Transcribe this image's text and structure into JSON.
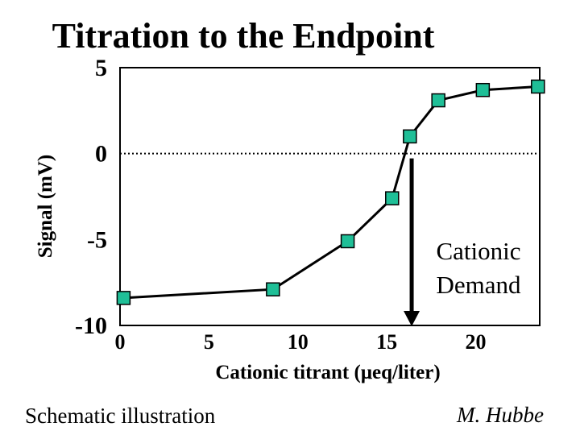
{
  "chart_data": {
    "type": "line",
    "title": "Titration to the Endpoint",
    "xlabel": "Cationic titrant  (μeq/liter)",
    "ylabel": "Signal  (mV)",
    "xlim": [
      0,
      23.6
    ],
    "ylim": [
      -10,
      5
    ],
    "xticks": [
      {
        "value": 0,
        "label": "0"
      },
      {
        "value": 5,
        "label": "5"
      },
      {
        "value": 10,
        "label": "10"
      },
      {
        "value": 15,
        "label": "15"
      },
      {
        "value": 20,
        "label": "20"
      }
    ],
    "yticks": [
      {
        "value": 5,
        "label": "5"
      },
      {
        "value": 0,
        "label": "0"
      },
      {
        "value": -5,
        "label": "-5"
      },
      {
        "value": -10,
        "label": "-10"
      }
    ],
    "series": [
      {
        "x": [
          0.2,
          8.6,
          12.8,
          15.3,
          16.3,
          17.9,
          20.4,
          23.5
        ],
        "y": [
          -8.4,
          -7.9,
          -5.1,
          -2.6,
          1.0,
          3.1,
          3.7,
          3.9
        ]
      }
    ],
    "reference_line": {
      "y": 0,
      "style": "dotted"
    },
    "endpoint": {
      "x": 16.4,
      "label_line1": "Cationic",
      "label_line2": "Demand"
    },
    "grid": false,
    "legend": "none",
    "colors": {
      "marker_fill": "#1fbf97",
      "marker_stroke": "#000000",
      "line": "#000000",
      "background": "#ffffff"
    }
  },
  "footer": {
    "left": "Schematic illustration",
    "right": "M. Hubbe"
  }
}
